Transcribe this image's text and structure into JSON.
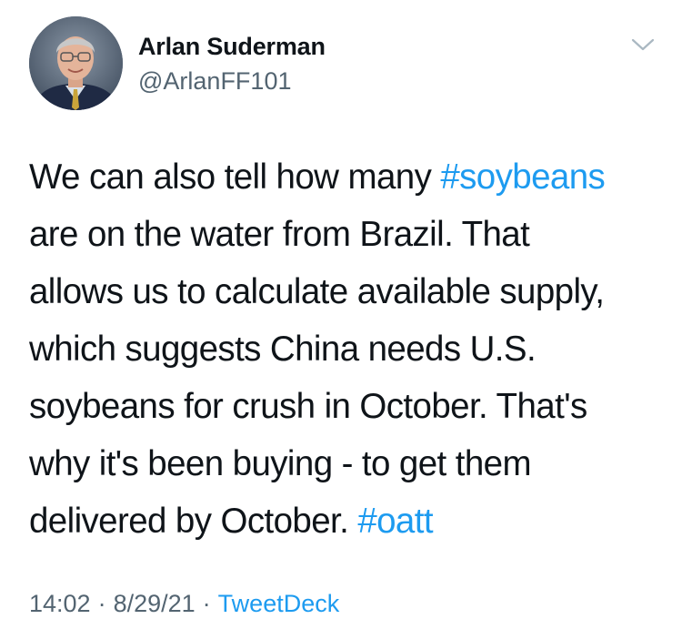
{
  "author": {
    "display_name": "Arlan Suderman",
    "handle": "@ArlanFF101",
    "avatar_icon": "person-portrait"
  },
  "menu_icon": "chevron-down-icon",
  "tweet": {
    "lines": [
      {
        "pre": "We can also tell how many ",
        "tag": "#soybeans"
      },
      {
        "pre": "are on the water from Brazil. That",
        "tag": ""
      },
      {
        "pre": "allows us to calculate available supply,",
        "tag": ""
      },
      {
        "pre": "which suggests China needs U.S.",
        "tag": ""
      },
      {
        "pre": "soybeans for crush in October. That's",
        "tag": ""
      },
      {
        "pre": "why it's been buying - to get them",
        "tag": ""
      },
      {
        "pre": "delivered by October. ",
        "tag": "#oatt"
      }
    ]
  },
  "meta": {
    "time": "14:02",
    "separator": "·",
    "date": "8/29/21",
    "source": "TweetDeck"
  },
  "colors": {
    "link": "#1d9bf0",
    "secondary_text": "#536471",
    "primary_text": "#0f1419"
  }
}
